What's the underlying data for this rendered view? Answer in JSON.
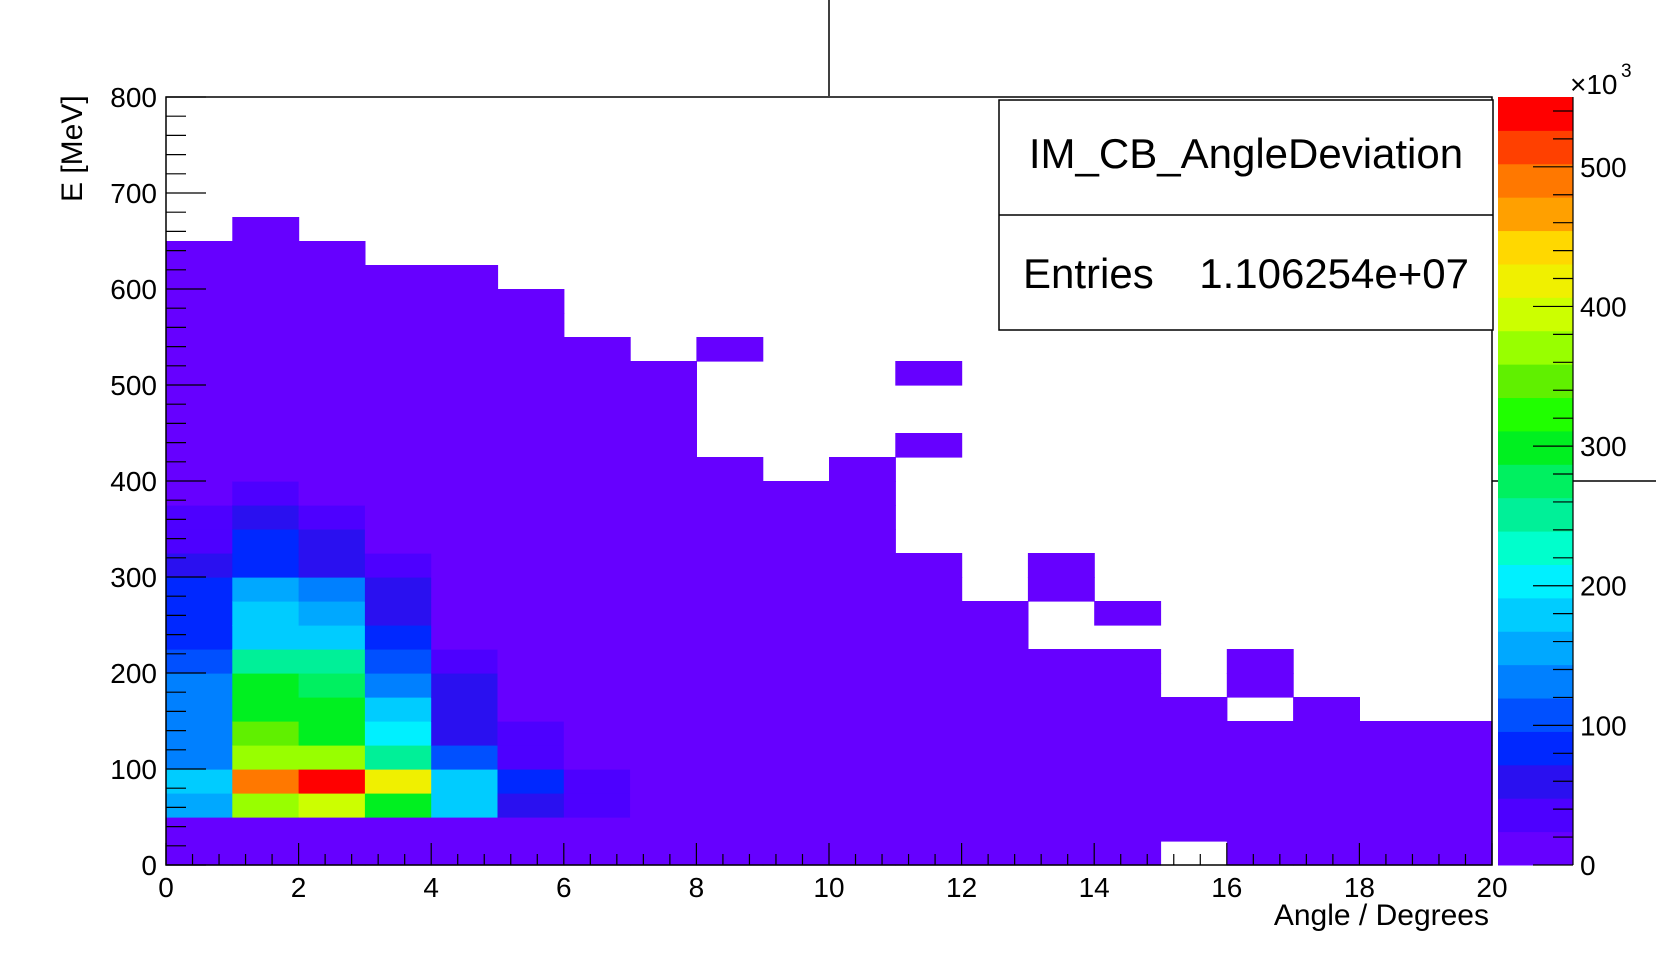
{
  "chart_data": {
    "type": "heatmap",
    "title": "",
    "xlabel": "Angle / Degrees",
    "ylabel": "E [MeV]",
    "xlim": [
      0,
      20
    ],
    "ylim": [
      0,
      800
    ],
    "bin_width_x": 1,
    "bin_width_y": 25,
    "x_ticks": [
      "0",
      "2",
      "4",
      "6",
      "8",
      "10",
      "12",
      "14",
      "16",
      "18",
      "20"
    ],
    "y_ticks": [
      "0",
      "100",
      "200",
      "300",
      "400",
      "500",
      "600",
      "700",
      "800"
    ],
    "colorbar": {
      "range": [
        0,
        550000
      ],
      "ticks": [
        "0",
        "100",
        "200",
        "300",
        "400",
        "500"
      ],
      "multiplier": "×10",
      "exponent": "3",
      "colors": [
        "#6600ff",
        "#4d00ff",
        "#2a10f0",
        "#0028ff",
        "#0050ff",
        "#0080ff",
        "#00a8ff",
        "#00ccff",
        "#00f0ff",
        "#00ffcc",
        "#00f098",
        "#00f060",
        "#00f020",
        "#20ff00",
        "#60f000",
        "#98ff00",
        "#ccff00",
        "#f0f000",
        "#ffd800",
        "#ffa000",
        "#ff7800",
        "#ff4000",
        "#ff0000"
      ]
    },
    "stats_box": {
      "name": "IM_CB_AngleDeviation",
      "entries_label": "Entries",
      "entries_value": "1.106254e+07"
    },
    "columns_max_energy": [
      650,
      675,
      650,
      625,
      625,
      600,
      550,
      525,
      500,
      400,
      425,
      525,
      325,
      325,
      275,
      175,
      225,
      175,
      150,
      150
    ],
    "empty_bins": [
      [
        8,
        475
      ],
      [
        8,
        450
      ],
      [
        8,
        500
      ],
      [
        8,
        425
      ],
      [
        9,
        525
      ],
      [
        9,
        500
      ],
      [
        9,
        475
      ],
      [
        9,
        450
      ],
      [
        9,
        425
      ],
      [
        9,
        400
      ],
      [
        10,
        500
      ],
      [
        10,
        475
      ],
      [
        10,
        450
      ],
      [
        10,
        425
      ],
      [
        11,
        475
      ],
      [
        11,
        450
      ],
      [
        11,
        400
      ],
      [
        11,
        375
      ],
      [
        11,
        350
      ],
      [
        11,
        325
      ],
      [
        12,
        275
      ],
      [
        12,
        300
      ],
      [
        13,
        250
      ],
      [
        13,
        225
      ],
      [
        14,
        225
      ],
      [
        15,
        175
      ],
      [
        15,
        0
      ],
      [
        16,
        150
      ]
    ],
    "extra_bins": [
      [
        8,
        525,
        0.5
      ],
      [
        11,
        500,
        0.5
      ],
      [
        11,
        425,
        0.5
      ],
      [
        12,
        300,
        0.5
      ],
      [
        14,
        250,
        0.5
      ]
    ],
    "hot_bins": [
      [
        0,
        350,
        35000
      ],
      [
        0,
        325,
        30000
      ],
      [
        0,
        300,
        50000
      ],
      [
        0,
        275,
        80000
      ],
      [
        0,
        250,
        85000
      ],
      [
        0,
        225,
        75000
      ],
      [
        0,
        200,
        115000
      ],
      [
        0,
        175,
        120000
      ],
      [
        0,
        150,
        120000
      ],
      [
        0,
        125,
        120000
      ],
      [
        0,
        100,
        140000
      ],
      [
        0,
        75,
        190000
      ],
      [
        0,
        50,
        145000
      ],
      [
        1,
        375,
        40000
      ],
      [
        1,
        350,
        65000
      ],
      [
        1,
        325,
        90000
      ],
      [
        1,
        300,
        95000
      ],
      [
        1,
        275,
        150000
      ],
      [
        1,
        250,
        175000
      ],
      [
        1,
        225,
        185000
      ],
      [
        1,
        200,
        260000
      ],
      [
        1,
        175,
        290000
      ],
      [
        1,
        150,
        300000
      ],
      [
        1,
        125,
        340000
      ],
      [
        1,
        100,
        370000
      ],
      [
        1,
        75,
        500000
      ],
      [
        1,
        50,
        360000
      ],
      [
        2,
        350,
        45000
      ],
      [
        2,
        325,
        65000
      ],
      [
        2,
        300,
        70000
      ],
      [
        2,
        275,
        120000
      ],
      [
        2,
        250,
        160000
      ],
      [
        2,
        225,
        175000
      ],
      [
        2,
        200,
        245000
      ],
      [
        2,
        175,
        270000
      ],
      [
        2,
        150,
        290000
      ],
      [
        2,
        125,
        300000
      ],
      [
        2,
        100,
        380000
      ],
      [
        2,
        75,
        540000
      ],
      [
        2,
        50,
        400000
      ],
      [
        3,
        300,
        45000
      ],
      [
        3,
        275,
        50000
      ],
      [
        3,
        250,
        70000
      ],
      [
        3,
        225,
        80000
      ],
      [
        3,
        200,
        115000
      ],
      [
        3,
        175,
        140000
      ],
      [
        3,
        150,
        175000
      ],
      [
        3,
        125,
        210000
      ],
      [
        3,
        100,
        260000
      ],
      [
        3,
        75,
        430000
      ],
      [
        3,
        50,
        300000
      ],
      [
        4,
        200,
        40000
      ],
      [
        4,
        175,
        50000
      ],
      [
        4,
        150,
        60000
      ],
      [
        4,
        125,
        65000
      ],
      [
        4,
        100,
        100000
      ],
      [
        4,
        75,
        190000
      ],
      [
        4,
        50,
        170000
      ],
      [
        5,
        125,
        40000
      ],
      [
        5,
        100,
        45000
      ],
      [
        5,
        75,
        80000
      ],
      [
        5,
        50,
        55000
      ],
      [
        6,
        75,
        42000
      ],
      [
        6,
        50,
        42000
      ]
    ]
  }
}
